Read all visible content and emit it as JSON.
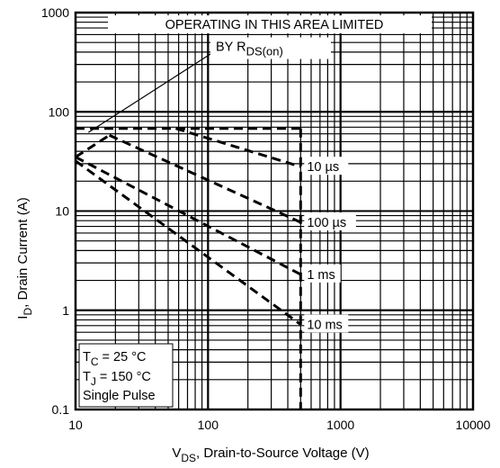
{
  "chart_data": {
    "type": "line",
    "xscale": "log",
    "yscale": "log",
    "xlim": [
      10,
      10000
    ],
    "ylim": [
      0.1,
      1000
    ],
    "grid": true,
    "xlabel": {
      "main": "V",
      "sub": "DS",
      "rest": ", Drain-to-Source Voltage (V)"
    },
    "ylabel": {
      "main": "I",
      "sub": "D",
      "rest": ", Drain Current (A)"
    },
    "xticks": [
      {
        "value": 10,
        "label": "10"
      },
      {
        "value": 100,
        "label": "100"
      },
      {
        "value": 1000,
        "label": "1000"
      },
      {
        "value": 10000,
        "label": "10000"
      }
    ],
    "yticks": [
      {
        "value": 0.1,
        "label": "0.1"
      },
      {
        "value": 1,
        "label": "1"
      },
      {
        "value": 10,
        "label": "10"
      },
      {
        "value": 100,
        "label": "100"
      },
      {
        "value": 1000,
        "label": "1000"
      }
    ],
    "rds_limit_line": {
      "points": [
        [
          12.5,
          62
        ],
        [
          110,
          400
        ]
      ]
    },
    "dc_limit_line": {
      "points": [
        [
          10,
          68
        ],
        [
          500,
          68
        ]
      ]
    },
    "voltage_limit_line": {
      "points": [
        [
          500,
          68
        ],
        [
          500,
          0.1
        ]
      ]
    },
    "series": [
      {
        "name": "10 µs",
        "points": [
          [
            57,
            68
          ],
          [
            500,
            28
          ]
        ]
      },
      {
        "name": "100 µs",
        "points": [
          [
            18,
            58
          ],
          [
            500,
            7.7
          ]
        ]
      },
      {
        "name": "1 ms",
        "points": [
          [
            10,
            35
          ],
          [
            18,
            58
          ]
        ]
      },
      {
        "name": "1 ms",
        "points": [
          [
            10,
            35
          ],
          [
            500,
            2.3
          ]
        ]
      },
      {
        "name": "10 ms",
        "points": [
          [
            10,
            32
          ],
          [
            500,
            0.72
          ]
        ]
      }
    ],
    "annotations": {
      "rds_line1": "OPERATING IN THIS AREA LIMITED",
      "rds_line2_main": "BY R",
      "rds_line2_sub": "DS(on)",
      "curve_labels": [
        {
          "text": "10 µs",
          "x": 500,
          "y": 28
        },
        {
          "text": "100 µs",
          "x": 500,
          "y": 7.7
        },
        {
          "text": "1 ms",
          "x": 500,
          "y": 2.3
        },
        {
          "text": "10 ms",
          "x": 500,
          "y": 0.72
        }
      ],
      "conditions": {
        "tc_main": "T",
        "tc_sub": "C",
        "tc_rest": " = 25 °C",
        "tj_main": "T",
        "tj_sub": "J",
        "tj_rest": " = 150 °C",
        "pulse": "Single Pulse"
      }
    }
  }
}
